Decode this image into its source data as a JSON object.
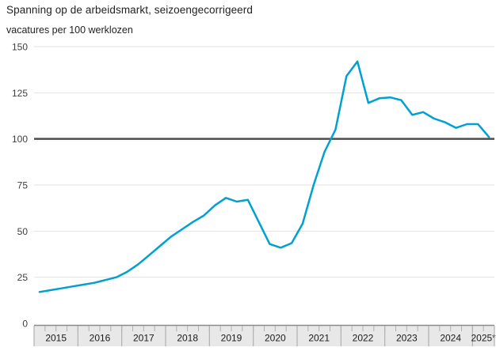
{
  "header": {
    "title": "Spanning op de arbeidsmarkt, seizoengecorrigeerd",
    "subtitle": "vacatures per 100 werklozen"
  },
  "chart_data": {
    "type": "line",
    "title": "Spanning op de arbeidsmarkt, seizoengecorrigeerd",
    "ylabel": "vacatures per 100 werklozen",
    "xlabel": "",
    "ylim": [
      0,
      150
    ],
    "yticks": [
      0,
      25,
      50,
      75,
      100,
      125,
      150
    ],
    "reference_line": 100,
    "grid": true,
    "legend": "none",
    "x": [
      "2015 Q1",
      "2015 Q2",
      "2015 Q3",
      "2015 Q4",
      "2016 Q1",
      "2016 Q2",
      "2016 Q3",
      "2016 Q4",
      "2017 Q1",
      "2017 Q2",
      "2017 Q3",
      "2017 Q4",
      "2018 Q1",
      "2018 Q2",
      "2018 Q3",
      "2018 Q4",
      "2019 Q1",
      "2019 Q2",
      "2019 Q3",
      "2019 Q4",
      "2020 Q1",
      "2020 Q2",
      "2020 Q3",
      "2020 Q4",
      "2021 Q1",
      "2021 Q2",
      "2021 Q3",
      "2021 Q4",
      "2022 Q1",
      "2022 Q2",
      "2022 Q3",
      "2022 Q4",
      "2023 Q1",
      "2023 Q2",
      "2023 Q3",
      "2023 Q4",
      "2024 Q1",
      "2024 Q2",
      "2024 Q3",
      "2024 Q4",
      "2025 Q1",
      "2025 Q2"
    ],
    "series": [
      {
        "name": "vacatures per 100 werklozen",
        "values": [
          17,
          18,
          19,
          20,
          21,
          22,
          23.5,
          25,
          28,
          32,
          37,
          42,
          47,
          51,
          55,
          58.5,
          64,
          68,
          66,
          67,
          55,
          43,
          41,
          43.5,
          54,
          75,
          93,
          105,
          134,
          142,
          119.5,
          122,
          122.5,
          121,
          113,
          114.5,
          111,
          109,
          106,
          108,
          108,
          101
        ]
      }
    ],
    "x_axis_years": [
      "2015",
      "2016",
      "2017",
      "2018",
      "2019",
      "2020",
      "2021",
      "2022",
      "2023",
      "2024",
      "2025*"
    ],
    "quarters_per_year": [
      4,
      4,
      4,
      4,
      4,
      4,
      4,
      4,
      4,
      4,
      2
    ],
    "colors": {
      "line": "#00a0d2",
      "grid": "#e2e2e2",
      "reference": "#4d4d4d",
      "axis_band_fill": "#e8e8e8",
      "axis_band_border": "#8a8a8a",
      "axis_tick": "#b0b0b0",
      "tick_label": "#404040",
      "year_label": "#1a1a1a"
    }
  }
}
